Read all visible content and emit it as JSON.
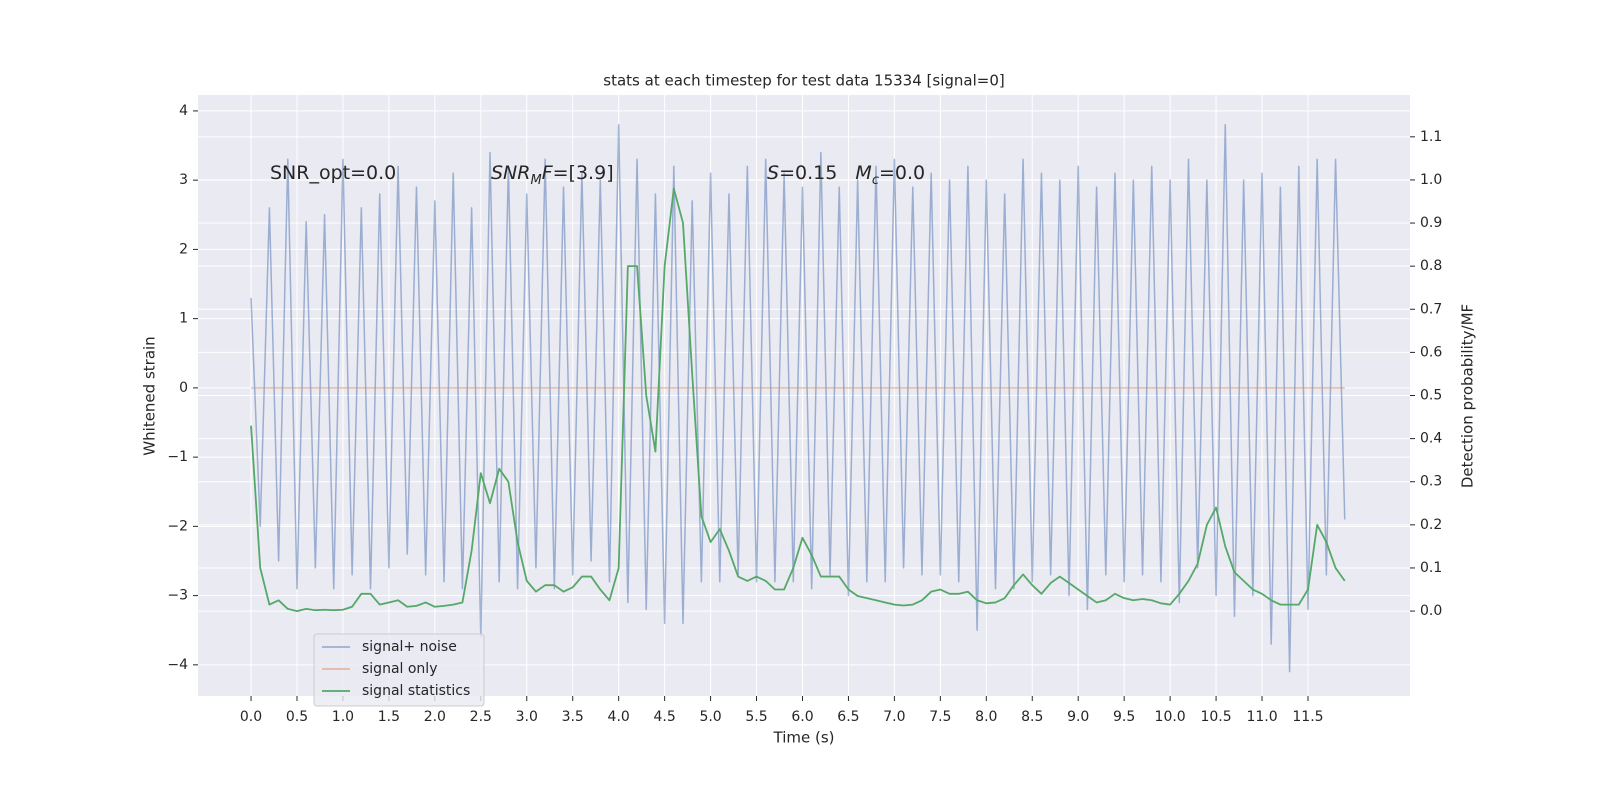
{
  "chart_data": {
    "type": "line",
    "title": "stats at each timestep for test data 15334 [signal=0]",
    "xlabel": "Time (s)",
    "ylabel": "Whitened strain",
    "y2label": "Detection probability/MF",
    "annotations": [
      [
        {
          "text": "SNR_opt=0.0"
        }
      ],
      [
        {
          "text": "SNR",
          "italic": true
        },
        {
          "text": "M",
          "italic": true,
          "sub": true
        },
        {
          "text": "F",
          "italic": true
        },
        {
          "text": "=[3.9]"
        }
      ],
      [
        {
          "text": "S",
          "italic": true
        },
        {
          "text": "=0.15   "
        },
        {
          "text": "M",
          "italic": true
        },
        {
          "text": "c",
          "italic": true,
          "sub": true
        },
        {
          "text": "=0.0"
        }
      ]
    ],
    "x": [
      0,
      0.1,
      0.2,
      0.3,
      0.4,
      0.5,
      0.6,
      0.7,
      0.8,
      0.9,
      1,
      1.1,
      1.2,
      1.3,
      1.4,
      1.5,
      1.6,
      1.7,
      1.8,
      1.9,
      2,
      2.1,
      2.2,
      2.3,
      2.4,
      2.5,
      2.6,
      2.7,
      2.8,
      2.9,
      3,
      3.1,
      3.2,
      3.3,
      3.4,
      3.5,
      3.6,
      3.7,
      3.8,
      3.9,
      4,
      4.1,
      4.2,
      4.3,
      4.4,
      4.5,
      4.6,
      4.7,
      4.8,
      4.9,
      5,
      5.1,
      5.2,
      5.3,
      5.4,
      5.5,
      5.6,
      5.7,
      5.8,
      5.9,
      6,
      6.1,
      6.2,
      6.3,
      6.4,
      6.5,
      6.6,
      6.7,
      6.8,
      6.9,
      7,
      7.1,
      7.2,
      7.3,
      7.4,
      7.5,
      7.6,
      7.7,
      7.8,
      7.9,
      8,
      8.1,
      8.2,
      8.3,
      8.4,
      8.5,
      8.6,
      8.7,
      8.8,
      8.9,
      9,
      9.1,
      9.2,
      9.3,
      9.4,
      9.5,
      9.6,
      9.7,
      9.8,
      9.9,
      10,
      10.1,
      10.2,
      10.3,
      10.4,
      10.5,
      10.6,
      10.7,
      10.8,
      10.9,
      11,
      11.1,
      11.2,
      11.3,
      11.4,
      11.5,
      11.6,
      11.7,
      11.8,
      11.9
    ],
    "series": [
      {
        "name": "signal+ noise",
        "color": "#4c72b0",
        "opacity": 0.5,
        "values": [
          1.3,
          -2.0,
          2.6,
          -2.5,
          3.3,
          -2.9,
          2.4,
          -2.6,
          2.5,
          -2.9,
          3.3,
          -2.7,
          2.6,
          -2.9,
          2.8,
          -2.6,
          3.2,
          -2.4,
          2.9,
          -2.7,
          2.7,
          -2.8,
          3.1,
          -2.9,
          2.6,
          -3.6,
          3.4,
          -2.8,
          3.2,
          -2.9,
          2.8,
          -2.6,
          3.3,
          -2.9,
          2.9,
          -2.7,
          3.1,
          -2.5,
          3.0,
          -2.8,
          3.8,
          -3.1,
          3.3,
          -3.2,
          2.8,
          -3.4,
          3.2,
          -3.4,
          2.7,
          -2.8,
          3.1,
          -2.8,
          2.8,
          -2.7,
          3.2,
          -2.8,
          3.3,
          -2.8,
          3.1,
          -2.8,
          2.9,
          -2.9,
          3.4,
          -2.7,
          2.9,
          -3.0,
          3.0,
          -2.8,
          3.2,
          -2.8,
          3.3,
          -2.6,
          2.9,
          -2.7,
          3.1,
          -2.7,
          3.0,
          -2.8,
          3.2,
          -3.5,
          3.0,
          -2.9,
          2.8,
          -2.9,
          3.3,
          -2.8,
          3.1,
          -2.7,
          3.0,
          -3.0,
          3.2,
          -3.2,
          2.9,
          -2.7,
          3.1,
          -2.8,
          3.0,
          -2.7,
          3.2,
          -2.8,
          3.0,
          -3.1,
          3.3,
          -2.6,
          3.0,
          -3.0,
          3.8,
          -3.3,
          3.0,
          -3.0,
          3.1,
          -3.7,
          2.9,
          -4.1,
          3.2,
          -3.2,
          3.3,
          -2.7,
          3.3,
          -1.9
        ]
      },
      {
        "name": "signal only",
        "color": "#dd8452",
        "opacity": 0.5,
        "x": [
          0,
          11.9
        ],
        "values": [
          0,
          0
        ]
      },
      {
        "name": "signal statistics",
        "color": "#55a868",
        "opacity": 1,
        "axis": "y2",
        "values": [
          0.43,
          0.1,
          0.015,
          0.025,
          0.005,
          0.0,
          0.005,
          0.002,
          0.003,
          0.002,
          0.003,
          0.01,
          0.04,
          0.04,
          0.015,
          0.02,
          0.025,
          0.01,
          0.012,
          0.02,
          0.01,
          0.012,
          0.015,
          0.02,
          0.14,
          0.32,
          0.25,
          0.33,
          0.3,
          0.16,
          0.07,
          0.045,
          0.06,
          0.06,
          0.045,
          0.055,
          0.08,
          0.08,
          0.05,
          0.025,
          0.1,
          0.8,
          0.8,
          0.5,
          0.37,
          0.8,
          0.98,
          0.9,
          0.55,
          0.22,
          0.16,
          0.19,
          0.14,
          0.08,
          0.07,
          0.08,
          0.07,
          0.05,
          0.05,
          0.1,
          0.17,
          0.13,
          0.08,
          0.08,
          0.08,
          0.05,
          0.035,
          0.03,
          0.025,
          0.02,
          0.015,
          0.013,
          0.015,
          0.025,
          0.045,
          0.05,
          0.04,
          0.04,
          0.045,
          0.025,
          0.018,
          0.02,
          0.03,
          0.06,
          0.085,
          0.06,
          0.04,
          0.065,
          0.08,
          0.065,
          0.05,
          0.035,
          0.02,
          0.025,
          0.04,
          0.03,
          0.025,
          0.028,
          0.025,
          0.018,
          0.015,
          0.04,
          0.07,
          0.11,
          0.2,
          0.24,
          0.15,
          0.09,
          0.07,
          0.05,
          0.04,
          0.025,
          0.015,
          0.015,
          0.015,
          0.05,
          0.2,
          0.16,
          0.1,
          0.07
        ]
      }
    ],
    "xlim": [
      -0.577,
      12.61
    ],
    "ylim": [
      -4.45,
      4.23
    ],
    "y2lim": [
      -0.197,
      1.197
    ],
    "xticks": [
      {
        "value": 0,
        "label": "0.0"
      },
      0.5,
      {
        "value": 1,
        "label": "1.0"
      },
      1.5,
      {
        "value": 2,
        "label": "2.0"
      },
      2.5,
      {
        "value": 3,
        "label": "3.0"
      },
      3.5,
      {
        "value": 4,
        "label": "4.0"
      },
      4.5,
      {
        "value": 5,
        "label": "5.0"
      },
      5.5,
      {
        "value": 6,
        "label": "6.0"
      },
      6.5,
      {
        "value": 7,
        "label": "7.0"
      },
      7.5,
      {
        "value": 8,
        "label": "8.0"
      },
      8.5,
      {
        "value": 9,
        "label": "9.0"
      },
      9.5,
      {
        "value": 10,
        "label": "10.0"
      },
      10.5,
      {
        "value": 11,
        "label": "11.0"
      },
      11.5
    ],
    "yticks": [
      {
        "value": -4,
        "label": "−4"
      },
      {
        "value": -3,
        "label": "−3"
      },
      {
        "value": -2,
        "label": "−2"
      },
      {
        "value": -1,
        "label": "−1"
      },
      0,
      1,
      2,
      3,
      4
    ],
    "y2ticks": [
      {
        "value": 0,
        "label": "0.0"
      },
      0.1,
      0.2,
      0.3,
      0.4,
      0.5,
      0.6,
      0.7,
      0.8,
      0.9,
      {
        "value": 1,
        "label": "1.0"
      },
      1.1
    ],
    "grid": true,
    "legend": "lower left"
  }
}
